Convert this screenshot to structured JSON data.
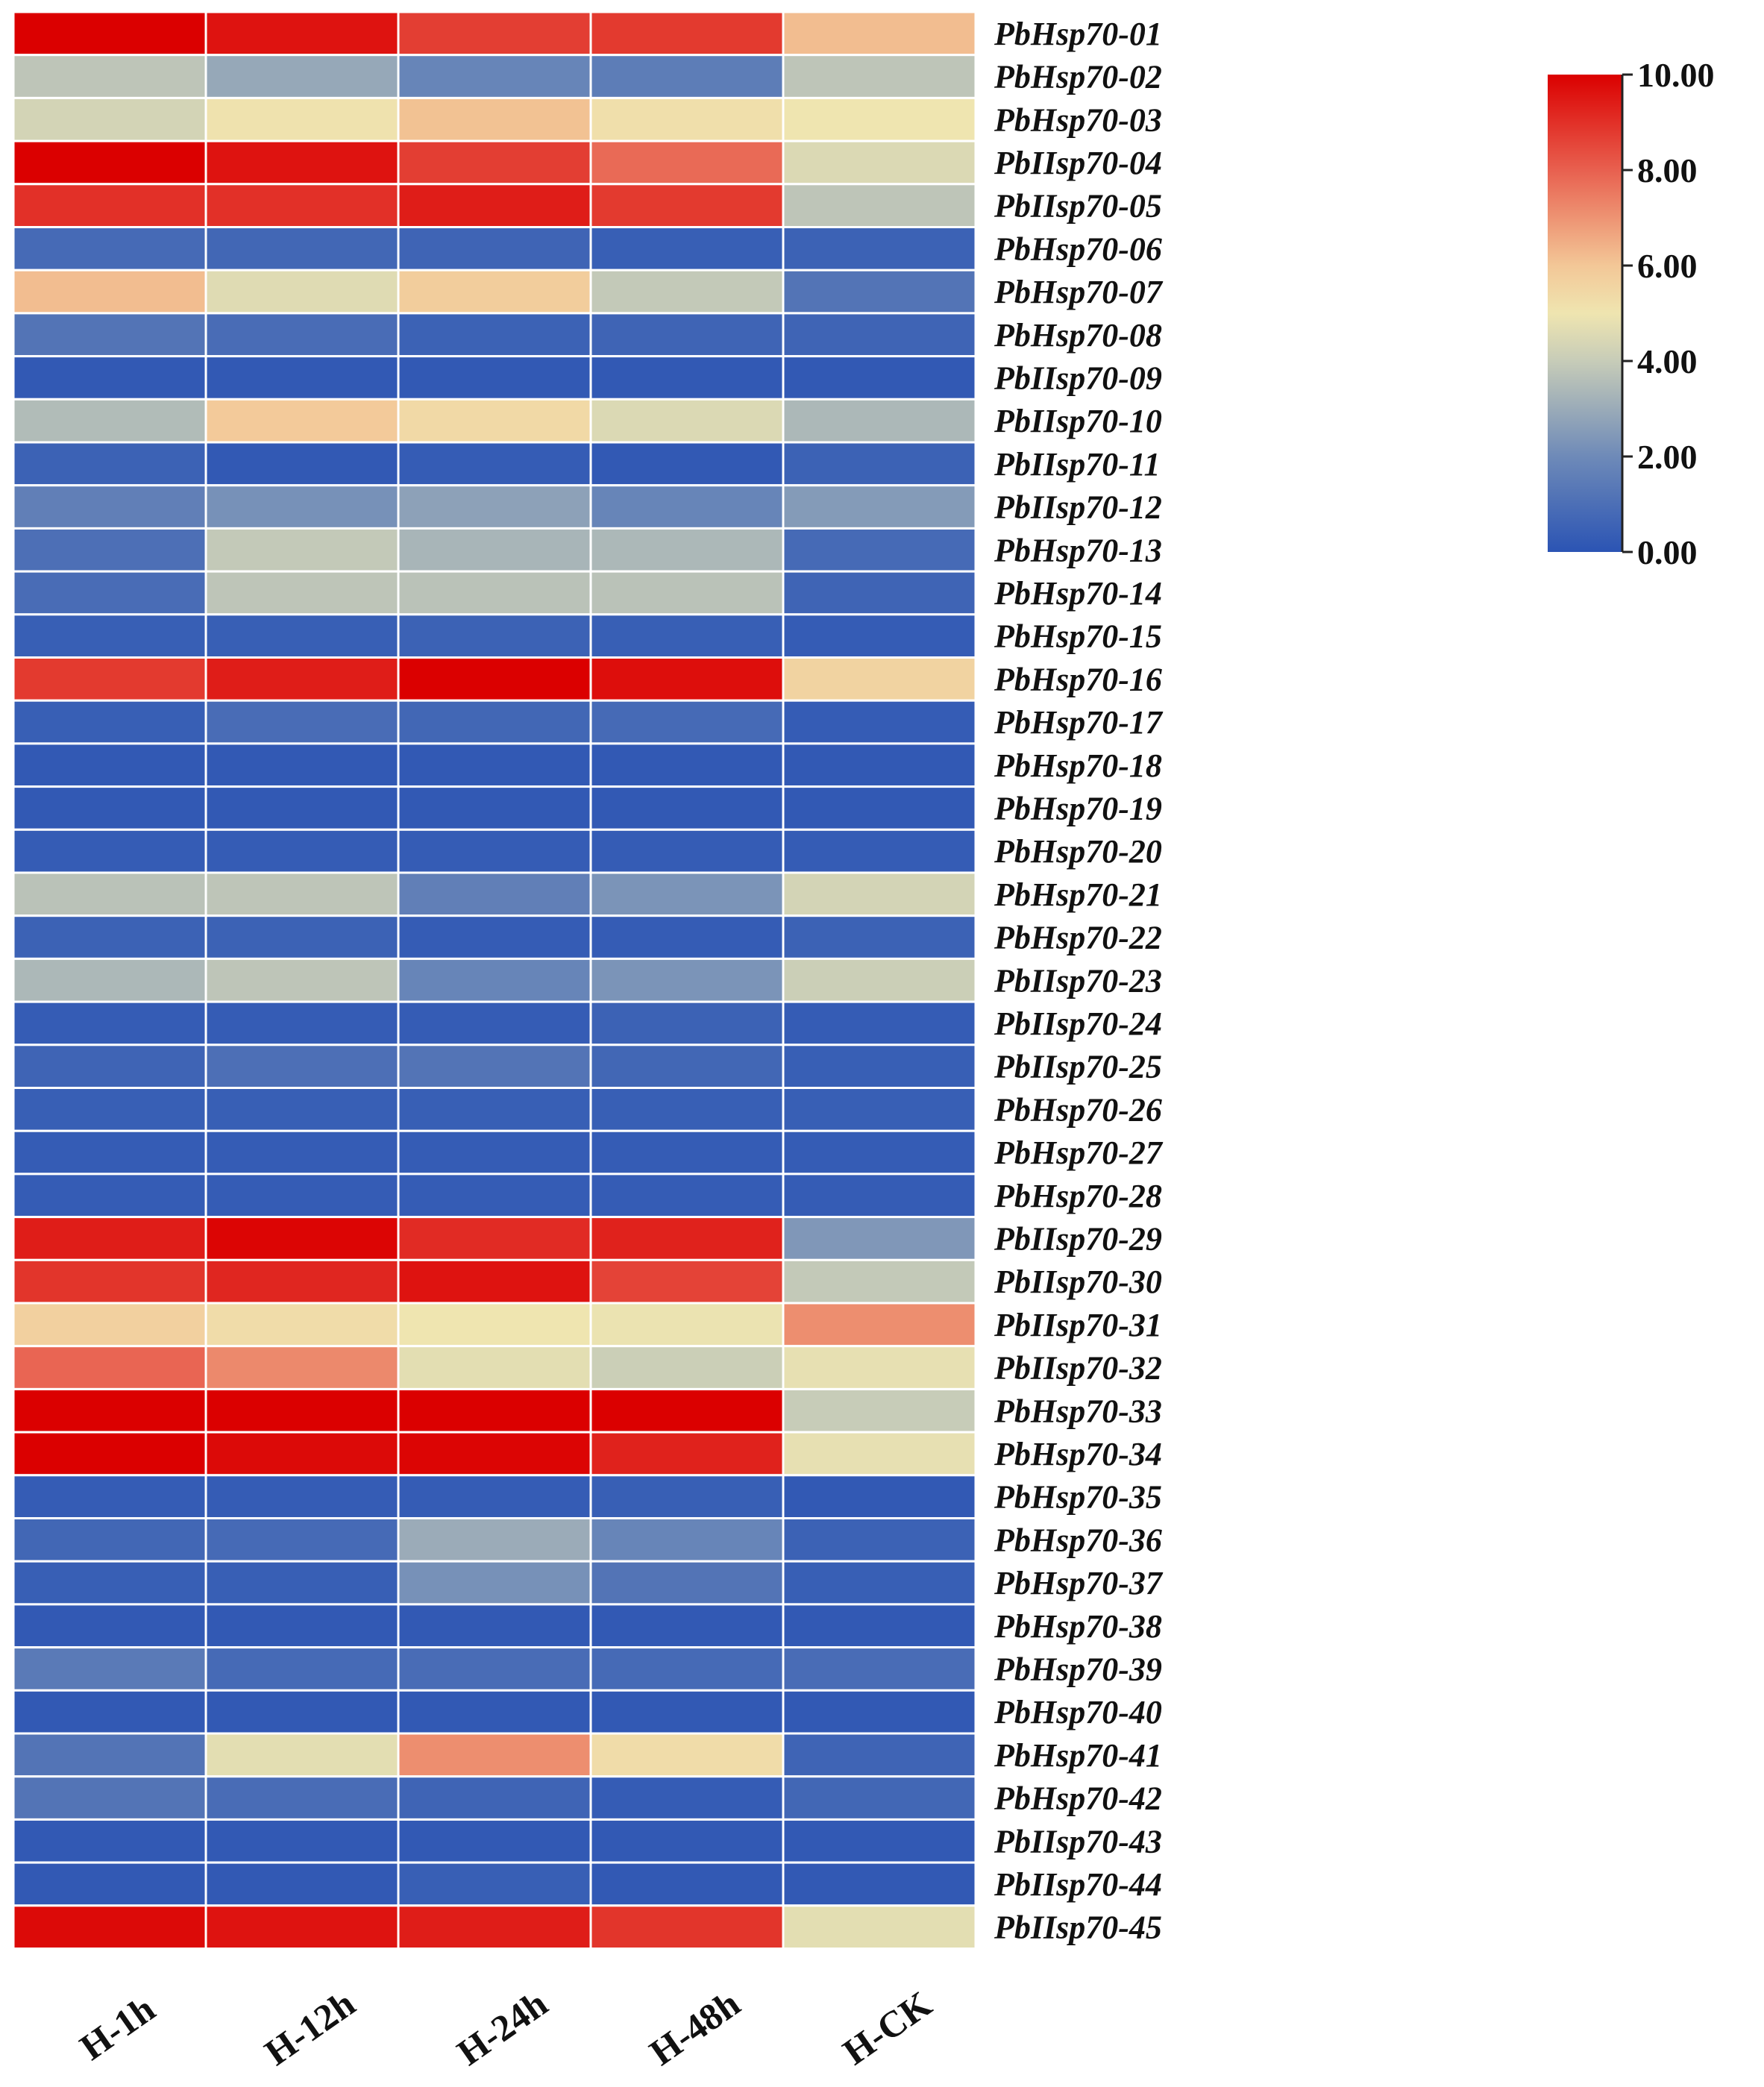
{
  "chart_data": {
    "type": "heatmap",
    "title": "",
    "xlabel": "",
    "ylabel": "",
    "columns": [
      "H-1h",
      "H-12h",
      "H-24h",
      "H-48h",
      "H-CK"
    ],
    "rows": [
      "PbHsp70-01",
      "PbHsp70-02",
      "PbHsp70-03",
      "PbIIsp70-04",
      "PbIIsp70-05",
      "PbHsp70-06",
      "PbHsp70-07",
      "PbHsp70-08",
      "PbIIsp70-09",
      "PbIIsp70-10",
      "PbIIsp70-11",
      "PbIIsp70-12",
      "PbHsp70-13",
      "PbHsp70-14",
      "PbHsp70-15",
      "PbHsp70-16",
      "PbHsp70-17",
      "PbHsp70-18",
      "PbHsp70-19",
      "PbHsp70-20",
      "PbHsp70-21",
      "PbHsp70-22",
      "PbIIsp70-23",
      "PbIIsp70-24",
      "PbIIsp70-25",
      "PbHsp70-26",
      "PbHsp70-27",
      "PbHsp70-28",
      "PbIIsp70-29",
      "PbIIsp70-30",
      "PbIIsp70-31",
      "PbIIsp70-32",
      "PbHsp70-33",
      "PbHsp70-34",
      "PbHsp70-35",
      "PbHsp70-36",
      "PbHsp70-37",
      "PbHsp70-38",
      "PbHsp70-39",
      "PbHsp70-40",
      "PbHsp70-41",
      "PbHsp70-42",
      "PbIIsp70-43",
      "PbIIsp70-44",
      "PbIIsp70-45"
    ],
    "values": [
      [
        10.0,
        9.6,
        8.7,
        8.8,
        6.2
      ],
      [
        3.8,
        2.9,
        1.8,
        1.5,
        3.8
      ],
      [
        4.3,
        5.1,
        6.1,
        5.2,
        5.0
      ],
      [
        10.0,
        9.6,
        8.7,
        7.8,
        4.5
      ],
      [
        9.0,
        9.0,
        9.4,
        8.8,
        3.8
      ],
      [
        0.8,
        0.7,
        0.6,
        0.4,
        0.5
      ],
      [
        6.2,
        4.6,
        5.8,
        3.9,
        1.2
      ],
      [
        1.2,
        0.9,
        0.5,
        0.6,
        0.6
      ],
      [
        0.2,
        0.2,
        0.2,
        0.2,
        0.2
      ],
      [
        3.5,
        5.9,
        5.4,
        4.5,
        3.4
      ],
      [
        0.5,
        0.2,
        0.3,
        0.2,
        0.5
      ],
      [
        1.6,
        2.2,
        2.7,
        1.8,
        2.5
      ],
      [
        1.0,
        3.9,
        3.3,
        3.4,
        0.8
      ],
      [
        0.9,
        3.8,
        3.7,
        3.7,
        0.6
      ],
      [
        0.4,
        0.4,
        0.5,
        0.4,
        0.3
      ],
      [
        8.8,
        9.4,
        10.0,
        9.7,
        5.6
      ],
      [
        0.4,
        0.9,
        0.7,
        0.8,
        0.3
      ],
      [
        0.2,
        0.2,
        0.2,
        0.2,
        0.2
      ],
      [
        0.2,
        0.2,
        0.2,
        0.2,
        0.2
      ],
      [
        0.3,
        0.3,
        0.3,
        0.3,
        0.3
      ],
      [
        3.7,
        3.8,
        1.6,
        2.3,
        4.3
      ],
      [
        0.5,
        0.5,
        0.3,
        0.3,
        0.5
      ],
      [
        3.4,
        3.8,
        1.8,
        2.3,
        4.1
      ],
      [
        0.3,
        0.3,
        0.3,
        0.5,
        0.3
      ],
      [
        0.6,
        1.0,
        1.2,
        0.7,
        0.4
      ],
      [
        0.4,
        0.4,
        0.4,
        0.4,
        0.4
      ],
      [
        0.3,
        0.3,
        0.3,
        0.3,
        0.3
      ],
      [
        0.3,
        0.3,
        0.3,
        0.3,
        0.3
      ],
      [
        9.4,
        9.9,
        9.1,
        9.3,
        2.4
      ],
      [
        8.9,
        9.2,
        9.6,
        8.6,
        3.9
      ],
      [
        5.7,
        5.3,
        5.0,
        4.9,
        7.1
      ],
      [
        7.9,
        7.2,
        4.7,
        4.1,
        4.8
      ],
      [
        10.0,
        10.0,
        10.0,
        10.0,
        4.0
      ],
      [
        10.0,
        9.8,
        9.9,
        9.3,
        4.8
      ],
      [
        0.3,
        0.3,
        0.3,
        0.4,
        0.2
      ],
      [
        0.7,
        0.8,
        3.0,
        1.8,
        0.5
      ],
      [
        0.4,
        0.4,
        2.2,
        1.2,
        0.4
      ],
      [
        0.2,
        0.2,
        0.2,
        0.2,
        0.2
      ],
      [
        1.4,
        0.8,
        0.9,
        0.8,
        0.9
      ],
      [
        0.2,
        0.2,
        0.2,
        0.2,
        0.2
      ],
      [
        1.2,
        4.7,
        7.1,
        5.3,
        0.6
      ],
      [
        1.2,
        0.9,
        0.6,
        0.3,
        0.7
      ],
      [
        0.2,
        0.2,
        0.2,
        0.2,
        0.2
      ],
      [
        0.2,
        0.2,
        0.4,
        0.2,
        0.2
      ],
      [
        9.8,
        9.6,
        9.4,
        8.9,
        4.7
      ]
    ],
    "color_scale": {
      "min": 0.0,
      "max": 10.0,
      "stops": [
        {
          "value": 0.0,
          "color": "#2b54b4"
        },
        {
          "value": 2.0,
          "color": "#6e8ab8"
        },
        {
          "value": 4.0,
          "color": "#c7ccb8"
        },
        {
          "value": 5.0,
          "color": "#efe5b0"
        },
        {
          "value": 6.0,
          "color": "#f3c797"
        },
        {
          "value": 8.0,
          "color": "#e8604f"
        },
        {
          "value": 10.0,
          "color": "#db0000"
        }
      ],
      "ticks": [
        "10.00",
        "8.00",
        "6.00",
        "4.00",
        "2.00",
        "0.00"
      ],
      "tick_values": [
        10,
        8,
        6,
        4,
        2,
        0
      ]
    },
    "grid_color": "#ffffff",
    "legend_position": "top-right"
  }
}
